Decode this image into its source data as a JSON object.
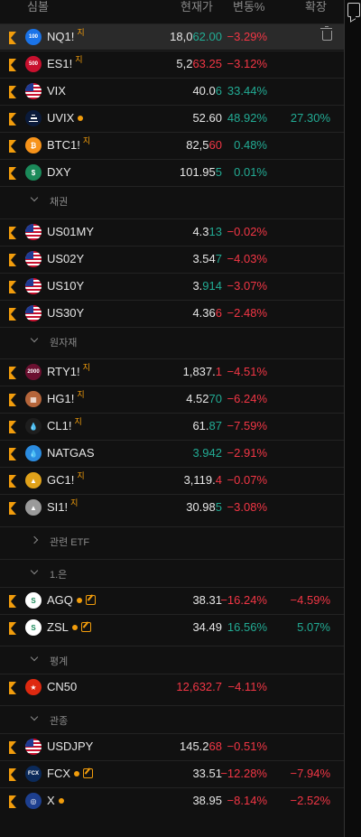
{
  "header": {
    "symbol": "심볼",
    "price": "현재가",
    "change_pct": "변동%",
    "extended": "확장"
  },
  "sections": {
    "bonds": "채권",
    "commodities": "원자재",
    "related_etf": "관련 ETF",
    "one_eun": "1.은",
    "pyeong": "평계",
    "watch": "관종"
  },
  "colors": {
    "flag": "#f29d0c",
    "negative": "#f23645",
    "positive": "#22ab94"
  },
  "rows": [
    {
      "symbol": "NQ1!",
      "sup": "지",
      "icon": "100",
      "icon_bg": "#1a73e8",
      "price_a": "18,0",
      "price_b": "62.00",
      "pc": "pos",
      "change": "−3.29%",
      "cc": "neg",
      "extended": ""
    },
    {
      "symbol": "ES1!",
      "sup": "지",
      "icon": "500",
      "icon_bg": "#c8102e",
      "price_a": "5,2",
      "price_b": "63.25",
      "pc": "neg",
      "change": "−3.12%",
      "cc": "neg",
      "extended": ""
    },
    {
      "symbol": "VIX",
      "sup": "",
      "icon": "us-flag",
      "price_a": "40.0",
      "price_b": "6",
      "pc": "pos",
      "change": "33.44%",
      "cc": "pos",
      "extended": ""
    },
    {
      "symbol": "UVIX",
      "sup": "",
      "icon": "bars",
      "icon_bg": "#0a1a3a",
      "price_a": "52.60",
      "price_b": "",
      "pc": "wh",
      "change": "48.92%",
      "cc": "pos",
      "extended": "27.30%",
      "ec": "pos"
    },
    {
      "symbol": "BTC1!",
      "sup": "지",
      "icon": "₿",
      "icon_bg": "#f7931a",
      "price_a": "82,5",
      "price_b": "60",
      "pc": "neg",
      "change": "0.48%",
      "cc": "pos",
      "extended": ""
    },
    {
      "symbol": "DXY",
      "sup": "",
      "icon": "$",
      "icon_bg": "#1b8a5a",
      "price_a": "101.95",
      "price_b": "5",
      "pc": "pos",
      "change": "0.01%",
      "cc": "pos",
      "extended": ""
    },
    {
      "symbol": "US01MY",
      "sup": "",
      "icon": "us-flag",
      "price_a": "4.3",
      "price_b": "13",
      "pc": "pos",
      "change": "−0.02%",
      "cc": "neg",
      "extended": ""
    },
    {
      "symbol": "US02Y",
      "sup": "",
      "icon": "us-flag",
      "price_a": "3.54",
      "price_b": "7",
      "pc": "pos",
      "change": "−4.03%",
      "cc": "neg",
      "extended": ""
    },
    {
      "symbol": "US10Y",
      "sup": "",
      "icon": "us-flag",
      "price_a": "3.",
      "price_b": "914",
      "pc": "pos",
      "change": "−3.07%",
      "cc": "neg",
      "extended": ""
    },
    {
      "symbol": "US30Y",
      "sup": "",
      "icon": "us-flag",
      "price_a": "4.36",
      "price_b": "6",
      "pc": "neg",
      "change": "−2.48%",
      "cc": "neg",
      "extended": ""
    },
    {
      "symbol": "RTY1!",
      "sup": "지",
      "icon": "2000",
      "icon_bg": "#6b1030",
      "price_a": "1,837.",
      "price_b": "1",
      "pc": "neg",
      "change": "−4.51%",
      "cc": "neg",
      "extended": ""
    },
    {
      "symbol": "HG1!",
      "sup": "지",
      "icon": "▦",
      "icon_bg": "#b5653a",
      "price_a": "4.52",
      "price_b": "70",
      "pc": "pos",
      "change": "−6.24%",
      "cc": "neg",
      "extended": ""
    },
    {
      "symbol": "CL1!",
      "sup": "지",
      "icon": "💧",
      "icon_bg": "#1e1e1e",
      "price_a": "61.",
      "price_b": "87",
      "pc": "pos",
      "change": "−7.59%",
      "cc": "neg",
      "extended": ""
    },
    {
      "symbol": "NATGAS",
      "sup": "",
      "icon": "💧",
      "icon_bg": "#2b8ce0",
      "price_a": "",
      "price_b": "3.942",
      "pc": "pos",
      "change": "−2.91%",
      "cc": "neg",
      "extended": ""
    },
    {
      "symbol": "GC1!",
      "sup": "지",
      "icon": "▲",
      "icon_bg": "#e0a21a",
      "price_a": "3,119.",
      "price_b": "4",
      "pc": "neg",
      "change": "−0.07%",
      "cc": "neg",
      "extended": ""
    },
    {
      "symbol": "SI1!",
      "sup": "지",
      "icon": "▲",
      "icon_bg": "#9a9a9a",
      "price_a": "30.98",
      "price_b": "5",
      "pc": "pos",
      "change": "−3.08%",
      "cc": "neg",
      "extended": ""
    },
    {
      "symbol": "AGQ",
      "sup": "",
      "icon": "S",
      "icon_bg": "#ffffff",
      "price_a": "38.31",
      "price_b": "",
      "pc": "wh",
      "change": "−16.24%",
      "cc": "neg",
      "extended": "−4.59%",
      "ec": "neg"
    },
    {
      "symbol": "ZSL",
      "sup": "",
      "icon": "S",
      "icon_bg": "#ffffff",
      "price_a": "34.49",
      "price_b": "",
      "pc": "wh",
      "change": "16.56%",
      "cc": "pos",
      "extended": "5.07%",
      "ec": "pos"
    },
    {
      "symbol": "CN50",
      "sup": "",
      "icon": "★",
      "icon_bg": "#de2910",
      "price_a": "",
      "price_b": "12,632.7",
      "pc": "neg",
      "change": "−4.11%",
      "cc": "neg",
      "extended": ""
    },
    {
      "symbol": "USDJPY",
      "sup": "",
      "icon": "us-flag",
      "price_a": "145.2",
      "price_b": "68",
      "pc": "neg",
      "change": "−0.51%",
      "cc": "neg",
      "extended": ""
    },
    {
      "symbol": "FCX",
      "sup": "",
      "icon": "FCX",
      "icon_bg": "#0b2a5a",
      "price_a": "33.51",
      "price_b": "",
      "pc": "wh",
      "change": "−12.28%",
      "cc": "neg",
      "extended": "−7.94%",
      "ec": "neg"
    },
    {
      "symbol": "X",
      "sup": "",
      "icon": "◎",
      "icon_bg": "#1d3f8f",
      "price_a": "38.95",
      "price_b": "",
      "pc": "wh",
      "change": "−8.14%",
      "cc": "neg",
      "extended": "−2.52%",
      "ec": "neg"
    }
  ]
}
